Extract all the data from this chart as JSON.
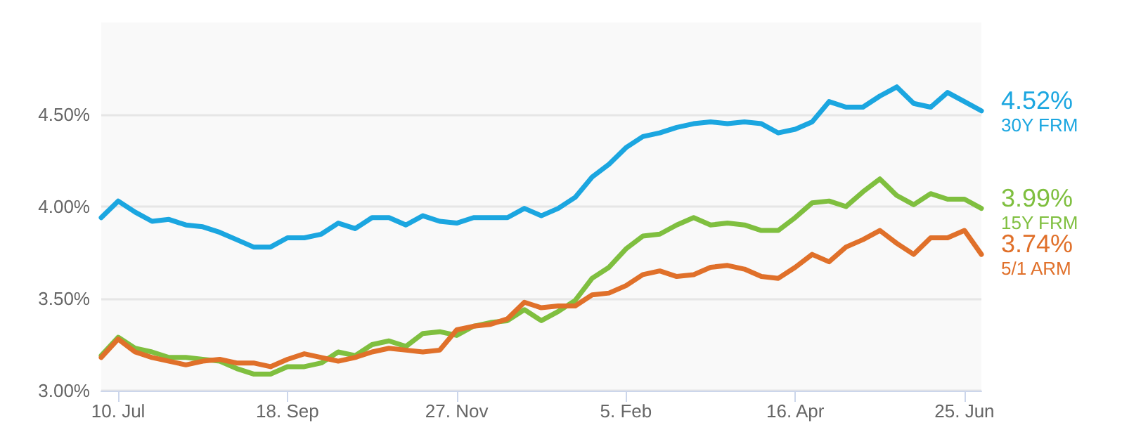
{
  "chart_data": {
    "type": "line",
    "categories": [
      null,
      "10. Jul",
      null,
      null,
      null,
      null,
      null,
      null,
      null,
      null,
      null,
      "18. Sep",
      null,
      null,
      null,
      null,
      null,
      null,
      null,
      null,
      null,
      "27. Nov",
      null,
      null,
      null,
      null,
      null,
      null,
      null,
      null,
      null,
      "5. Feb",
      null,
      null,
      null,
      null,
      null,
      null,
      null,
      null,
      null,
      "16. Apr",
      null,
      null,
      null,
      null,
      null,
      null,
      null,
      null,
      null,
      "25. Jun",
      null
    ],
    "series": [
      {
        "name": "30Y FRM",
        "color": "#1ba6e0",
        "values": [
          3.94,
          4.03,
          3.97,
          3.92,
          3.93,
          3.9,
          3.89,
          3.86,
          3.82,
          3.78,
          3.78,
          3.83,
          3.83,
          3.85,
          3.91,
          3.88,
          3.94,
          3.94,
          3.9,
          3.95,
          3.92,
          3.91,
          3.94,
          3.94,
          3.94,
          3.99,
          3.95,
          3.99,
          4.05,
          4.16,
          4.23,
          4.32,
          4.38,
          4.4,
          4.43,
          4.45,
          4.46,
          4.45,
          4.46,
          4.45,
          4.4,
          4.42,
          4.46,
          4.57,
          4.54,
          4.54,
          4.6,
          4.65,
          4.56,
          4.54,
          4.62,
          4.57,
          4.52
        ],
        "value_labels": [
          null,
          null,
          null,
          null,
          null,
          null,
          null,
          null,
          null,
          null,
          null,
          null,
          null,
          null,
          null,
          null,
          null,
          null,
          null,
          null,
          null,
          null,
          null,
          null,
          null,
          null,
          null,
          null,
          null,
          null,
          null,
          null,
          null,
          null,
          null,
          null,
          null,
          null,
          null,
          null,
          null,
          null,
          null,
          null,
          null,
          null,
          null,
          null,
          null,
          null,
          null,
          null,
          "4.52%"
        ]
      },
      {
        "name": "15Y FRM",
        "color": "#7fbf3f",
        "values": [
          3.19,
          3.29,
          3.23,
          3.21,
          3.18,
          3.18,
          3.17,
          3.16,
          3.12,
          3.09,
          3.09,
          3.13,
          3.13,
          3.15,
          3.21,
          3.19,
          3.25,
          3.27,
          3.24,
          3.31,
          3.32,
          3.3,
          3.35,
          3.37,
          3.38,
          3.44,
          3.38,
          3.43,
          3.49,
          3.61,
          3.67,
          3.77,
          3.84,
          3.85,
          3.9,
          3.94,
          3.9,
          3.91,
          3.9,
          3.87,
          3.87,
          3.94,
          4.02,
          4.03,
          4.0,
          4.08,
          4.15,
          4.06,
          4.01,
          4.07,
          4.04,
          4.04,
          3.99
        ],
        "value_labels": [
          null,
          null,
          null,
          null,
          null,
          null,
          null,
          null,
          null,
          null,
          null,
          null,
          null,
          null,
          null,
          null,
          null,
          null,
          null,
          null,
          null,
          null,
          null,
          null,
          null,
          null,
          null,
          null,
          null,
          null,
          null,
          null,
          null,
          null,
          null,
          null,
          null,
          null,
          null,
          null,
          null,
          null,
          null,
          null,
          null,
          null,
          null,
          null,
          null,
          null,
          null,
          null,
          "3.99%"
        ]
      },
      {
        "name": "5/1 ARM",
        "color": "#e0702a",
        "values": [
          3.18,
          3.28,
          3.21,
          3.18,
          3.16,
          3.14,
          3.16,
          3.17,
          3.15,
          3.15,
          3.13,
          3.17,
          3.2,
          3.18,
          3.16,
          3.18,
          3.21,
          3.23,
          3.22,
          3.21,
          3.22,
          3.33,
          3.35,
          3.36,
          3.39,
          3.48,
          3.45,
          3.46,
          3.46,
          3.52,
          3.53,
          3.57,
          3.63,
          3.65,
          3.62,
          3.63,
          3.67,
          3.68,
          3.66,
          3.62,
          3.61,
          3.67,
          3.74,
          3.7,
          3.78,
          3.82,
          3.87,
          3.8,
          3.74,
          3.83,
          3.83,
          3.87,
          3.74
        ],
        "value_labels": [
          null,
          null,
          null,
          null,
          null,
          null,
          null,
          null,
          null,
          null,
          null,
          null,
          null,
          null,
          null,
          null,
          null,
          null,
          null,
          null,
          null,
          null,
          null,
          null,
          null,
          null,
          null,
          null,
          null,
          null,
          null,
          null,
          null,
          null,
          null,
          null,
          null,
          null,
          null,
          null,
          null,
          null,
          null,
          null,
          null,
          null,
          null,
          null,
          null,
          null,
          null,
          null,
          "3.74%"
        ]
      }
    ],
    "ylim": [
      3,
      5
    ],
    "yticks": [
      {
        "value": 3,
        "label": "3.00%"
      },
      {
        "value": 3.5,
        "label": "3.50%"
      },
      {
        "value": 4,
        "label": "4.00%"
      },
      {
        "value": 4.5,
        "label": "4.50%"
      }
    ],
    "grid": "y",
    "legend": false,
    "marker": "none",
    "line_style": "solid"
  }
}
